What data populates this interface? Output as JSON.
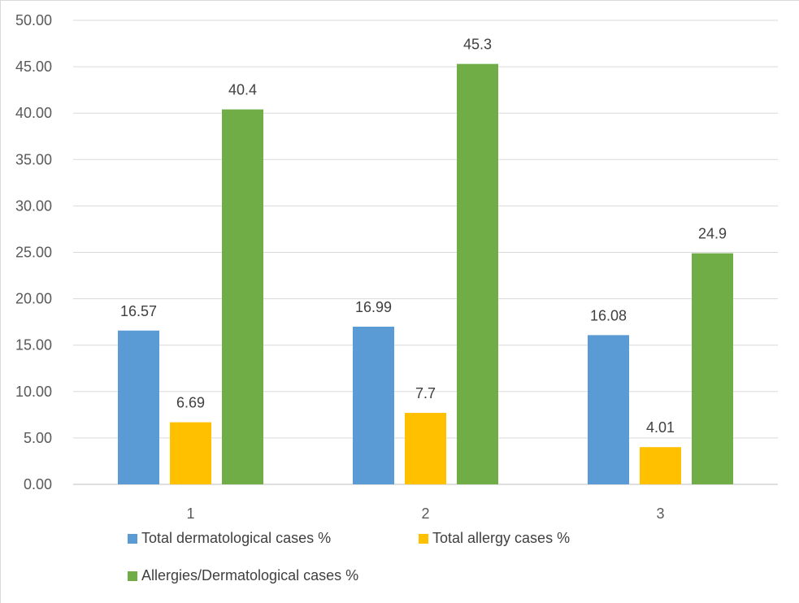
{
  "chart_data": {
    "type": "bar",
    "categories": [
      "1",
      "2",
      "3"
    ],
    "series": [
      {
        "name": "Total dermatological cases %",
        "values": [
          16.57,
          16.99,
          16.08
        ],
        "color": "#5b9bd5",
        "labels": [
          "16.57",
          "16.99",
          "16.08"
        ]
      },
      {
        "name": "Total allergy cases %",
        "values": [
          6.69,
          7.7,
          4.01
        ],
        "color": "#ffc000",
        "labels": [
          "6.69",
          "7.7",
          "4.01"
        ]
      },
      {
        "name": "Allergies/Dermatological cases %",
        "values": [
          40.4,
          45.3,
          24.9
        ],
        "color": "#70ad47",
        "labels": [
          "40.4",
          "45.3",
          "24.9"
        ]
      }
    ],
    "ylim": [
      0,
      50
    ],
    "yticks": [
      "0.00",
      "5.00",
      "10.00",
      "15.00",
      "20.00",
      "25.00",
      "30.00",
      "35.00",
      "40.00",
      "45.00",
      "50.00"
    ],
    "grid": true,
    "legend_position": "bottom"
  }
}
